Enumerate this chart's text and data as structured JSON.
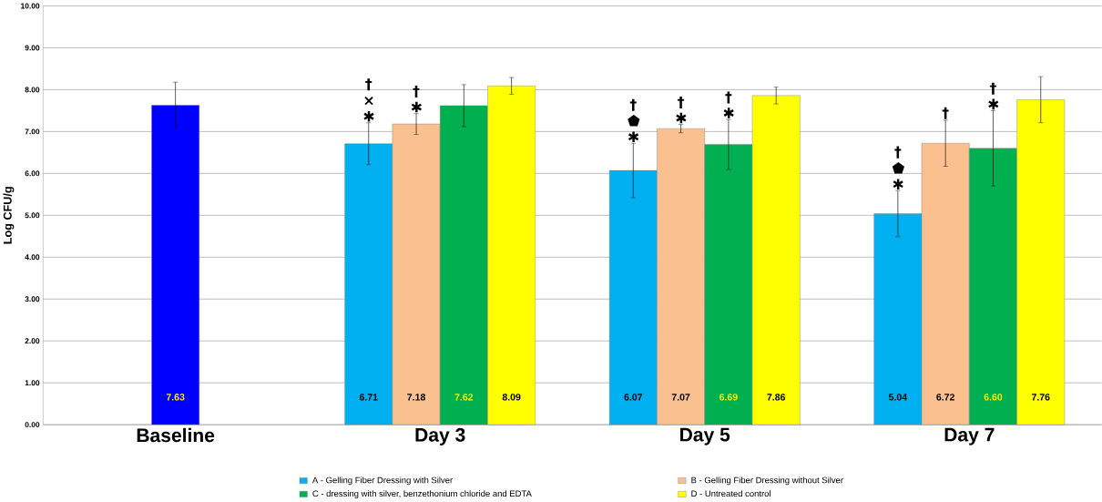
{
  "chart_data": {
    "type": "bar",
    "ylabel": "Log CFU/g",
    "categories": [
      "Baseline",
      "Day 3",
      "Day 5",
      "Day 7"
    ],
    "series": [
      {
        "color": "#0000ff",
        "values": [
          7.63,
          null,
          null,
          null
        ],
        "errors": [
          0.55,
          null,
          null,
          null
        ],
        "value_labels": [
          "7.63",
          null,
          null,
          null
        ]
      },
      {
        "name": "A - Gelling Fiber Dressing with Silver",
        "color": "#00b0f0",
        "values": [
          null,
          6.71,
          6.07,
          5.04
        ],
        "errors": [
          null,
          0.5,
          0.65,
          0.55
        ],
        "value_labels": [
          null,
          "6.71",
          "6.07",
          "5.04"
        ]
      },
      {
        "name": "B - Gelling Fiber Dressing without Silver",
        "color": "#fac090",
        "values": [
          null,
          7.18,
          7.07,
          6.72
        ],
        "errors": [
          null,
          0.25,
          0.1,
          0.55
        ],
        "value_labels": [
          null,
          "7.18",
          "7.07",
          "6.72"
        ]
      },
      {
        "name": "C - dressing with silver, benzethonium chloride and EDTA",
        "color": "#00b050",
        "values": [
          null,
          7.62,
          6.69,
          6.6
        ],
        "errors": [
          null,
          0.5,
          0.6,
          0.9
        ],
        "value_labels": [
          null,
          "7.62",
          "6.69",
          "6.60"
        ]
      },
      {
        "name": "D - Untreated control",
        "color": "#ffff00",
        "values": [
          null,
          8.09,
          7.86,
          7.76
        ],
        "errors": [
          null,
          0.2,
          0.2,
          0.55
        ],
        "value_labels": [
          null,
          "8.09",
          "7.86",
          "7.76"
        ]
      }
    ],
    "ylim": [
      0,
      10
    ],
    "yticks": [
      {
        "value": 0,
        "label": "0.00"
      },
      {
        "value": 1,
        "label": "1.00"
      },
      {
        "value": 2,
        "label": "2.00"
      },
      {
        "value": 3,
        "label": "3.00"
      },
      {
        "value": 4,
        "label": "4.00"
      },
      {
        "value": 5,
        "label": "5.00"
      },
      {
        "value": 6,
        "label": "6.00"
      },
      {
        "value": 7,
        "label": "7.00"
      },
      {
        "value": 8,
        "label": "8.00"
      },
      {
        "value": 9,
        "label": "9.00"
      },
      {
        "value": 10,
        "label": "10.00"
      }
    ],
    "grid": "y",
    "legend": "bottom",
    "annotations": [
      "† × ✱",
      "† ✱",
      "† ⬟ ✱",
      "† ✱",
      "† ✱",
      "† ⬟ ✱",
      "†",
      "† ✱"
    ]
  }
}
